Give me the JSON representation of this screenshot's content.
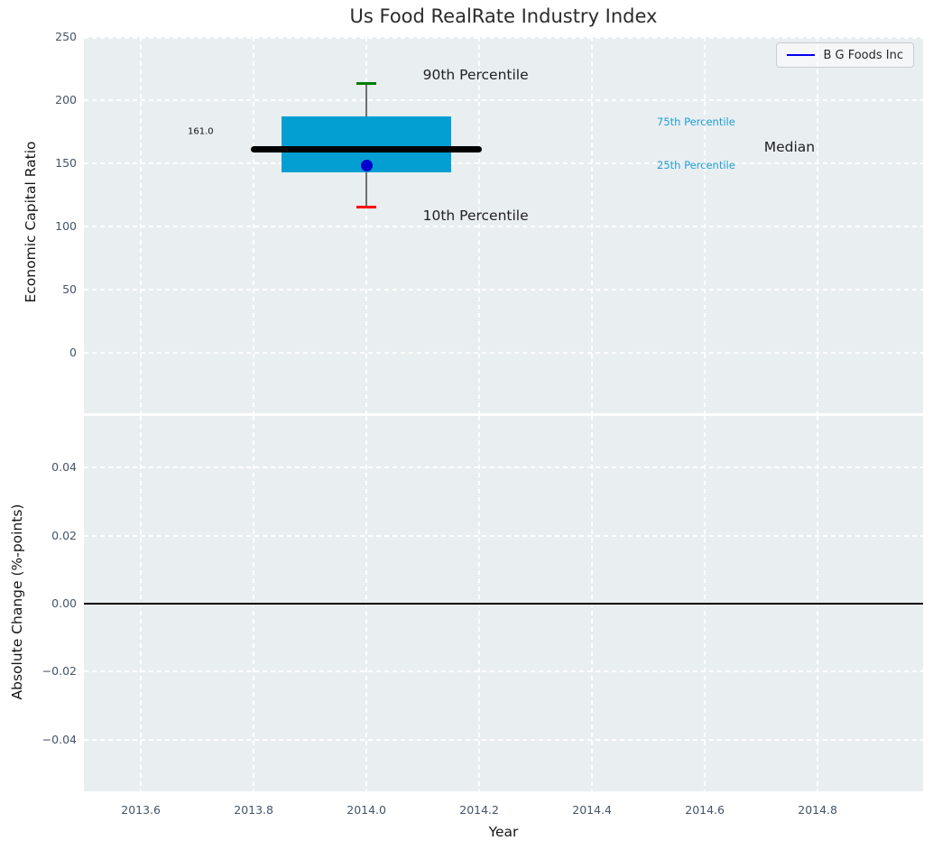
{
  "title": "Us Food RealRate Industry Index",
  "legend": {
    "label": "B G Foods Inc"
  },
  "colors": {
    "plot_bg": "#e9eef0",
    "grid": "#ffffff",
    "box_fill": "#049fd2",
    "median_line": "#000000",
    "whisker": "#6e6e6e",
    "cap_90th": "#007d02",
    "cap_10th": "#fe0000",
    "company_dot": "#0000cc",
    "legend_line": "#0000ee",
    "zero_line": "#000000",
    "tick_label": "#44546a",
    "annotation_cyan": "#1f9fd4"
  },
  "x_axis": {
    "label": "Year",
    "xlim": [
      2013.499,
      2014.987
    ],
    "ticks": [
      {
        "v": 2013.6,
        "label": "2013.6"
      },
      {
        "v": 2013.8,
        "label": "2013.8"
      },
      {
        "v": 2014.0,
        "label": "2014.0"
      },
      {
        "v": 2014.2,
        "label": "2014.2"
      },
      {
        "v": 2014.4,
        "label": "2014.4"
      },
      {
        "v": 2014.6,
        "label": "2014.6"
      },
      {
        "v": 2014.8,
        "label": "2014.8"
      }
    ]
  },
  "chart_data": [
    {
      "type": "boxplot",
      "subplot": "top",
      "title": "Us Food RealRate Industry Index",
      "ylabel": "Economic Capital Ratio",
      "ylim": [
        -47.9,
        250
      ],
      "yticks": [
        {
          "v": 250,
          "label": "250"
        },
        {
          "v": 200,
          "label": "200"
        },
        {
          "v": 150,
          "label": "150"
        },
        {
          "v": 100,
          "label": "100"
        },
        {
          "v": 50,
          "label": "50"
        },
        {
          "v": 0,
          "label": "0"
        }
      ],
      "series": [
        {
          "name": "B G Foods Inc",
          "year": 2014.0,
          "p10": 115,
          "p25": 143,
          "median": 161.0,
          "p75": 187,
          "p90": 213,
          "company_value": 148
        }
      ],
      "box_geometry": {
        "box_x_left": 2013.85,
        "box_x_right": 2014.15,
        "median_x_left": 2013.795,
        "median_x_right": 2014.205,
        "cap_half_width_years": 0.018
      },
      "annotations": [
        {
          "text": "90th Percentile",
          "x": 2014.1,
          "y": 220,
          "style": "big",
          "name": "annotation-90th-percentile"
        },
        {
          "text": "10th Percentile",
          "x": 2014.1,
          "y": 108.5,
          "style": "big",
          "name": "annotation-10th-percentile"
        },
        {
          "text": "75th Percentile",
          "x": 2014.515,
          "y": 183,
          "style": "cyan",
          "name": "annotation-75th-percentile"
        },
        {
          "text": "25th Percentile",
          "x": 2014.515,
          "y": 148.5,
          "style": "cyan",
          "name": "annotation-25th-percentile"
        },
        {
          "text": "Median",
          "x": 2014.705,
          "y": 163,
          "style": "big",
          "name": "annotation-median"
        },
        {
          "text": "161.0",
          "x": 2013.683,
          "y": 175,
          "style": "small",
          "name": "annotation-median-value"
        }
      ]
    },
    {
      "type": "line",
      "subplot": "bottom",
      "ylabel": "Absolute Change (%-points)",
      "xlabel": "Year",
      "ylim": [
        -0.0552,
        0.0552
      ],
      "yticks": [
        {
          "v": 0.04,
          "label": "0.04"
        },
        {
          "v": 0.02,
          "label": "0.02"
        },
        {
          "v": 0.0,
          "label": "0.00"
        },
        {
          "v": -0.02,
          "label": "−0.02"
        },
        {
          "v": -0.04,
          "label": "−0.04"
        }
      ],
      "zero_line_y": 0.0,
      "series": [
        {
          "name": "B G Foods Inc",
          "x": [],
          "y": []
        }
      ]
    }
  ]
}
